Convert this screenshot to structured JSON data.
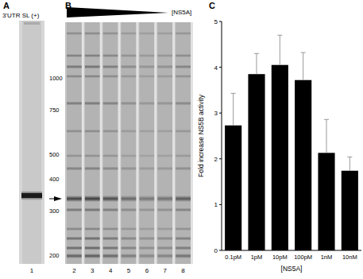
{
  "panel_labels": [
    "A",
    "B",
    "C"
  ],
  "gel_a": {
    "header": "3'UTR SL (+)",
    "markers": [
      1000,
      750,
      500,
      400,
      300,
      200
    ],
    "lane": "1"
  },
  "gel_b": {
    "header": "[NS5A]",
    "lanes": [
      "2",
      "3",
      "4",
      "5",
      "6",
      "7",
      "8"
    ]
  },
  "chart_data": {
    "type": "bar",
    "categories": [
      "0.1pM",
      "1pM",
      "10pM",
      "100pM",
      "1nM",
      "10nM"
    ],
    "values": [
      2.73,
      3.85,
      4.05,
      3.72,
      2.13,
      1.74
    ],
    "errors": [
      0.7,
      0.45,
      0.65,
      0.6,
      0.73,
      0.3
    ],
    "color": "#000000",
    "x_label": "[NS5A]",
    "y_label": "Fold increase NS5B activity",
    "ylim": [
      0,
      5
    ],
    "yticks": [
      0,
      1,
      2,
      3,
      4,
      5
    ],
    "grid": false
  }
}
